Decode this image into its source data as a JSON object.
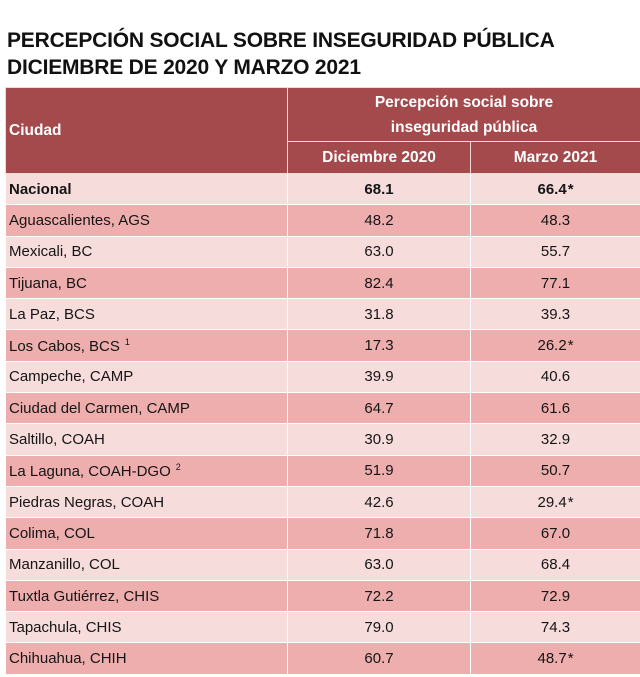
{
  "title_line1": "PERCEPCIÓN SOCIAL SOBRE INSEGURIDAD PÚBLICA",
  "title_line2": "DICIEMBRE DE 2020 Y MARZO 2021",
  "header": {
    "city_col": "Ciudad",
    "group_line1": "Percepción social sobre",
    "group_line2": "inseguridad pública",
    "col_dec": "Diciembre 2020",
    "col_mar": "Marzo 2021"
  },
  "rows": [
    {
      "city": "Nacional",
      "sup": "",
      "dec": "68.1",
      "mar": "66.4",
      "star": "*"
    },
    {
      "city": "Aguascalientes, AGS",
      "sup": "",
      "dec": "48.2",
      "mar": "48.3",
      "star": ""
    },
    {
      "city": "Mexicali, BC",
      "sup": "",
      "dec": "63.0",
      "mar": "55.7",
      "star": ""
    },
    {
      "city": "Tijuana, BC",
      "sup": "",
      "dec": "82.4",
      "mar": "77.1",
      "star": ""
    },
    {
      "city": "La Paz, BCS",
      "sup": "",
      "dec": "31.8",
      "mar": "39.3",
      "star": ""
    },
    {
      "city": "Los Cabos, BCS",
      "sup": "1",
      "dec": "17.3",
      "mar": "26.2",
      "star": "*"
    },
    {
      "city": "Campeche, CAMP",
      "sup": "",
      "dec": "39.9",
      "mar": "40.6",
      "star": ""
    },
    {
      "city": "Ciudad del Carmen, CAMP",
      "sup": "",
      "dec": "64.7",
      "mar": "61.6",
      "star": ""
    },
    {
      "city": "Saltillo, COAH",
      "sup": "",
      "dec": "30.9",
      "mar": "32.9",
      "star": ""
    },
    {
      "city": "La Laguna, COAH-DGO",
      "sup": "2",
      "dec": "51.9",
      "mar": "50.7",
      "star": ""
    },
    {
      "city": "Piedras Negras, COAH",
      "sup": "",
      "dec": "42.6",
      "mar": "29.4",
      "star": "*"
    },
    {
      "city": "Colima, COL",
      "sup": "",
      "dec": "71.8",
      "mar": "67.0",
      "star": ""
    },
    {
      "city": "Manzanillo, COL",
      "sup": "",
      "dec": "63.0",
      "mar": "68.4",
      "star": ""
    },
    {
      "city": "Tuxtla Gutiérrez, CHIS",
      "sup": "",
      "dec": "72.2",
      "mar": "72.9",
      "star": ""
    },
    {
      "city": "Tapachula, CHIS",
      "sup": "",
      "dec": "79.0",
      "mar": "74.3",
      "star": ""
    },
    {
      "city": "Chihuahua, CHIH",
      "sup": "",
      "dec": "60.7",
      "mar": "48.7",
      "star": "*"
    }
  ],
  "colors": {
    "header_bg": "#a4494c",
    "row_light": "#f7dcdc",
    "row_dark": "#eeaeae"
  }
}
